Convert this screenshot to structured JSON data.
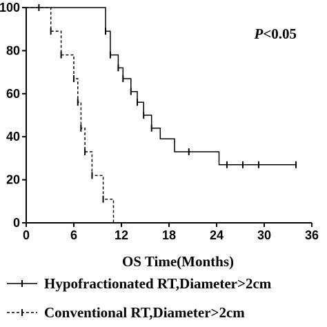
{
  "chart_data": {
    "type": "line",
    "title": "",
    "xlabel": "OS Time(Months)",
    "ylabel": "",
    "xlim": [
      0,
      36
    ],
    "ylim": [
      0,
      100
    ],
    "x_ticks": [
      0,
      6,
      12,
      18,
      24,
      30,
      36
    ],
    "y_ticks": [
      0,
      20,
      40,
      60,
      80,
      100
    ],
    "grid": false,
    "legend_position": "bottom",
    "annotation": "P<0.05",
    "series": [
      {
        "name": "Hypofractionated RT,Diameter>2cm",
        "style": "solid",
        "steps": [
          [
            0,
            100
          ],
          [
            10.0,
            100
          ],
          [
            10.0,
            89
          ],
          [
            10.6,
            89
          ],
          [
            10.6,
            78
          ],
          [
            11.6,
            78
          ],
          [
            11.6,
            72
          ],
          [
            12.2,
            72
          ],
          [
            12.2,
            67
          ],
          [
            13.2,
            67
          ],
          [
            13.2,
            61
          ],
          [
            14.0,
            61
          ],
          [
            14.0,
            56
          ],
          [
            14.8,
            56
          ],
          [
            14.8,
            50
          ],
          [
            15.8,
            50
          ],
          [
            15.8,
            44
          ],
          [
            16.9,
            44
          ],
          [
            16.9,
            39
          ],
          [
            18.7,
            39
          ],
          [
            18.7,
            33
          ],
          [
            24.3,
            33
          ],
          [
            24.3,
            27
          ],
          [
            34.0,
            27
          ]
        ],
        "censored": [
          [
            1.6,
            100
          ],
          [
            10.0,
            89
          ],
          [
            10.6,
            78
          ],
          [
            11.6,
            72
          ],
          [
            12.2,
            67
          ],
          [
            13.2,
            61
          ],
          [
            14.0,
            56
          ],
          [
            14.8,
            50
          ],
          [
            15.8,
            44
          ],
          [
            20.5,
            33
          ],
          [
            25.3,
            27
          ],
          [
            27.3,
            27
          ],
          [
            29.3,
            27
          ],
          [
            34.0,
            27
          ]
        ]
      },
      {
        "name": "Conventional RT,Diameter>2cm",
        "style": "dashed",
        "steps": [
          [
            0,
            100
          ],
          [
            3.1,
            100
          ],
          [
            3.1,
            89
          ],
          [
            4.4,
            89
          ],
          [
            4.4,
            78
          ],
          [
            6.0,
            78
          ],
          [
            6.0,
            67
          ],
          [
            6.5,
            67
          ],
          [
            6.5,
            56
          ],
          [
            6.9,
            56
          ],
          [
            6.9,
            44
          ],
          [
            7.4,
            44
          ],
          [
            7.4,
            33
          ],
          [
            8.3,
            33
          ],
          [
            8.3,
            22
          ],
          [
            9.7,
            22
          ],
          [
            9.7,
            11
          ],
          [
            11.0,
            11
          ],
          [
            11.0,
            0
          ]
        ],
        "censored": [
          [
            3.1,
            89
          ],
          [
            4.4,
            78
          ],
          [
            6.0,
            67
          ],
          [
            6.5,
            56
          ],
          [
            6.9,
            44
          ],
          [
            7.4,
            33
          ],
          [
            8.3,
            22
          ],
          [
            9.7,
            11
          ]
        ]
      }
    ]
  }
}
